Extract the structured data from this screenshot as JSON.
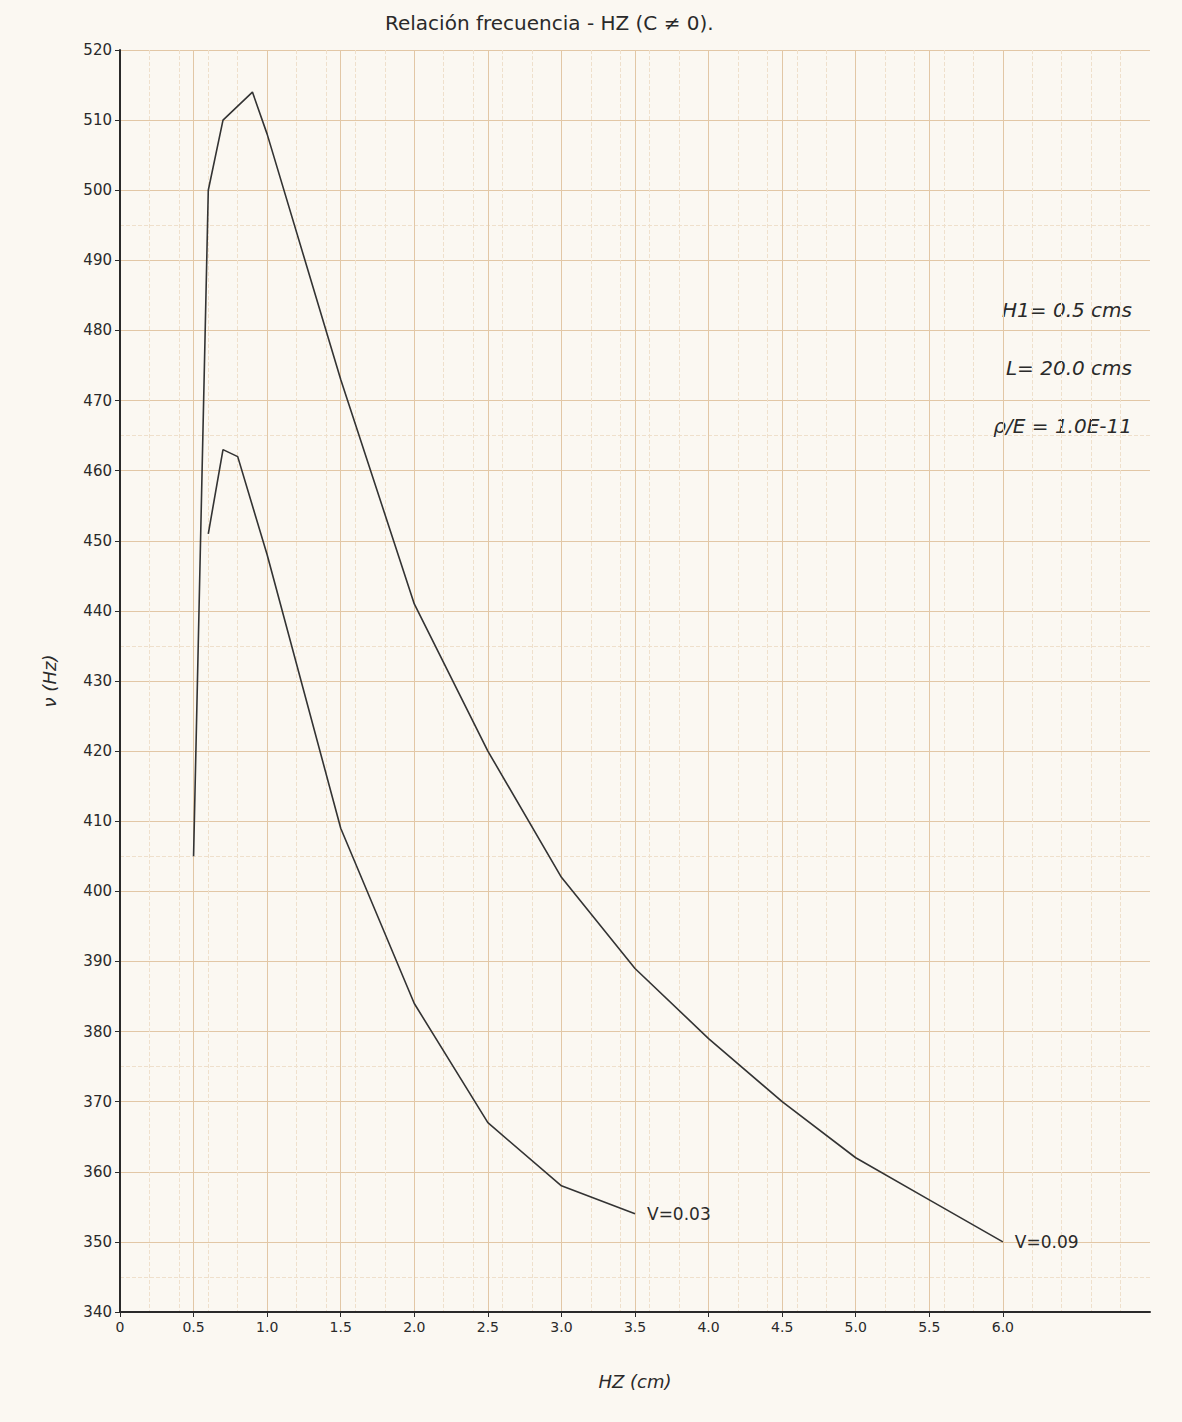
{
  "chart_data": {
    "type": "line",
    "title": "Relación frecuencia - HZ (C ≠ 0).",
    "x_label": "HZ (cm)",
    "y_label": "ν (Hz)",
    "annotations": [
      "H1= 0.5 cms",
      "L= 20.0 cms",
      "ρ/E = 1.0E-11"
    ],
    "series": [
      {
        "name": "V=0.03",
        "color": "#333333",
        "x": [
          0.6,
          0.7,
          0.8,
          1.0,
          1.5,
          2.0,
          2.5,
          3.0,
          3.5
        ],
        "values": [
          451,
          463,
          462,
          448,
          409,
          384,
          367,
          358,
          354
        ]
      },
      {
        "name": "V=0.09",
        "color": "#333333",
        "x": [
          0.5,
          0.6,
          0.7,
          0.9,
          1.0,
          1.5,
          2.0,
          2.5,
          3.0,
          3.5,
          4.0,
          4.5,
          5.0,
          5.5,
          6.0
        ],
        "values": [
          405,
          500,
          510,
          514,
          508,
          473,
          441,
          420,
          402,
          389,
          379,
          370,
          362,
          356,
          350
        ]
      }
    ],
    "xlim": [
      0,
      7
    ],
    "xticks": [
      0,
      0.5,
      {
        "value": 1,
        "label": "1.0"
      },
      1.5,
      {
        "value": 2,
        "label": "2.0"
      },
      2.5,
      {
        "value": 3,
        "label": "3.0"
      },
      3.5,
      {
        "value": 4,
        "label": "4.0"
      },
      4.5,
      {
        "value": 5,
        "label": "5.0"
      },
      5.5,
      {
        "value": 6,
        "label": "6.0"
      }
    ],
    "ylim": [
      340,
      520
    ],
    "yticks": [
      340,
      350,
      360,
      370,
      380,
      390,
      400,
      410,
      420,
      430,
      440,
      450,
      460,
      470,
      480,
      490,
      500,
      510,
      520
    ],
    "grid": true
  }
}
